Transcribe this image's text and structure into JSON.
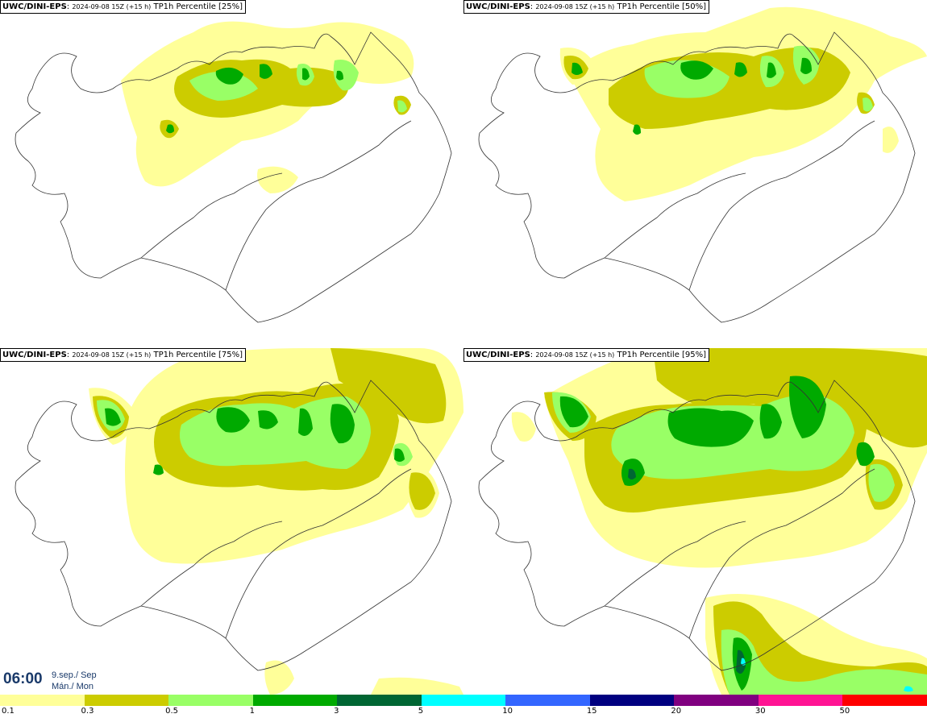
{
  "panels": [
    {
      "model": "UWC/DINI-EPS",
      "run": "2024-09-08 15Z (+15 h)",
      "param": "TP1h Percentile [25%]"
    },
    {
      "model": "UWC/DINI-EPS",
      "run": "2024-09-08 15Z (+15 h)",
      "param": "TP1h Percentile [50%]"
    },
    {
      "model": "UWC/DINI-EPS",
      "run": "2024-09-08 15Z (+15 h)",
      "param": "TP1h Percentile [75%]"
    },
    {
      "model": "UWC/DINI-EPS",
      "run": "2024-09-08 15Z (+15 h)",
      "param": "TP1h Percentile [95%]"
    }
  ],
  "valid_time": {
    "time": "06:00",
    "date_line1": "9.sep./ Sep",
    "date_line2": "Mán./ Mon"
  },
  "legend": {
    "labels": [
      "0.1",
      "0.3",
      "0.5",
      "1",
      "3",
      "5",
      "10",
      "15",
      "20",
      "30",
      "50"
    ],
    "colors": [
      "#ffff99",
      "#cccc00",
      "#99ff66",
      "#00aa00",
      "#006633",
      "#00ffff",
      "#3366ff",
      "#000080",
      "#800080",
      "#ff1493",
      "#ff0000"
    ]
  },
  "colors": {
    "light_yellow": "#ffff99",
    "olive": "#cccc00",
    "light_green": "#99ff66",
    "green": "#00aa00",
    "dark_green": "#006633",
    "cyan": "#00ffff",
    "coast": "#333333"
  }
}
